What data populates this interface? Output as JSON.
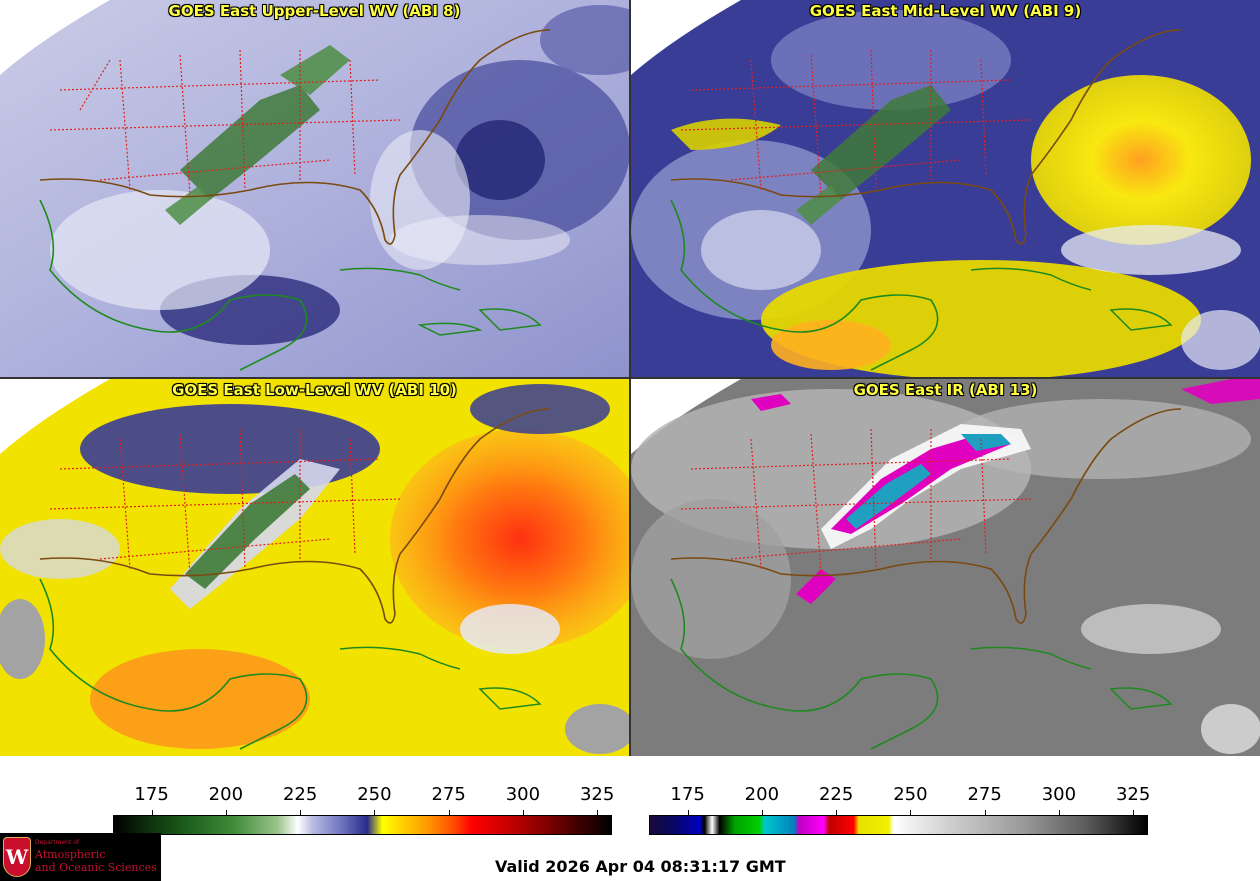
{
  "panels": {
    "upper": {
      "title": "GOES East Upper-Level WV (ABI 8)",
      "palette": "wv"
    },
    "mid": {
      "title": "GOES East Mid-Level WV (ABI 9)",
      "palette": "wv"
    },
    "low": {
      "title": "GOES East Low-Level WV (ABI 10)",
      "palette": "wv"
    },
    "ir": {
      "title": "GOES East IR (ABI 13)",
      "palette": "ir"
    }
  },
  "colorbars": {
    "wv": {
      "ticks": [
        "175",
        "200",
        "225",
        "250",
        "275",
        "300",
        "325"
      ],
      "range": [
        162,
        330
      ]
    },
    "ir": {
      "ticks": [
        "175",
        "200",
        "225",
        "250",
        "275",
        "300",
        "325"
      ],
      "range": [
        162,
        330
      ]
    }
  },
  "colors": {
    "state_borders": "#e0201e",
    "coastline": "#1e8a1e",
    "country_borders": "#7a4a10",
    "title_text": "#ffff40"
  },
  "logo": {
    "line1": "Department of",
    "line2": "Atmospheric",
    "line3": "and Oceanic Sciences",
    "crest_letter": "W"
  },
  "valid_time": "Valid 2026 Apr 04 08:31:17 GMT"
}
